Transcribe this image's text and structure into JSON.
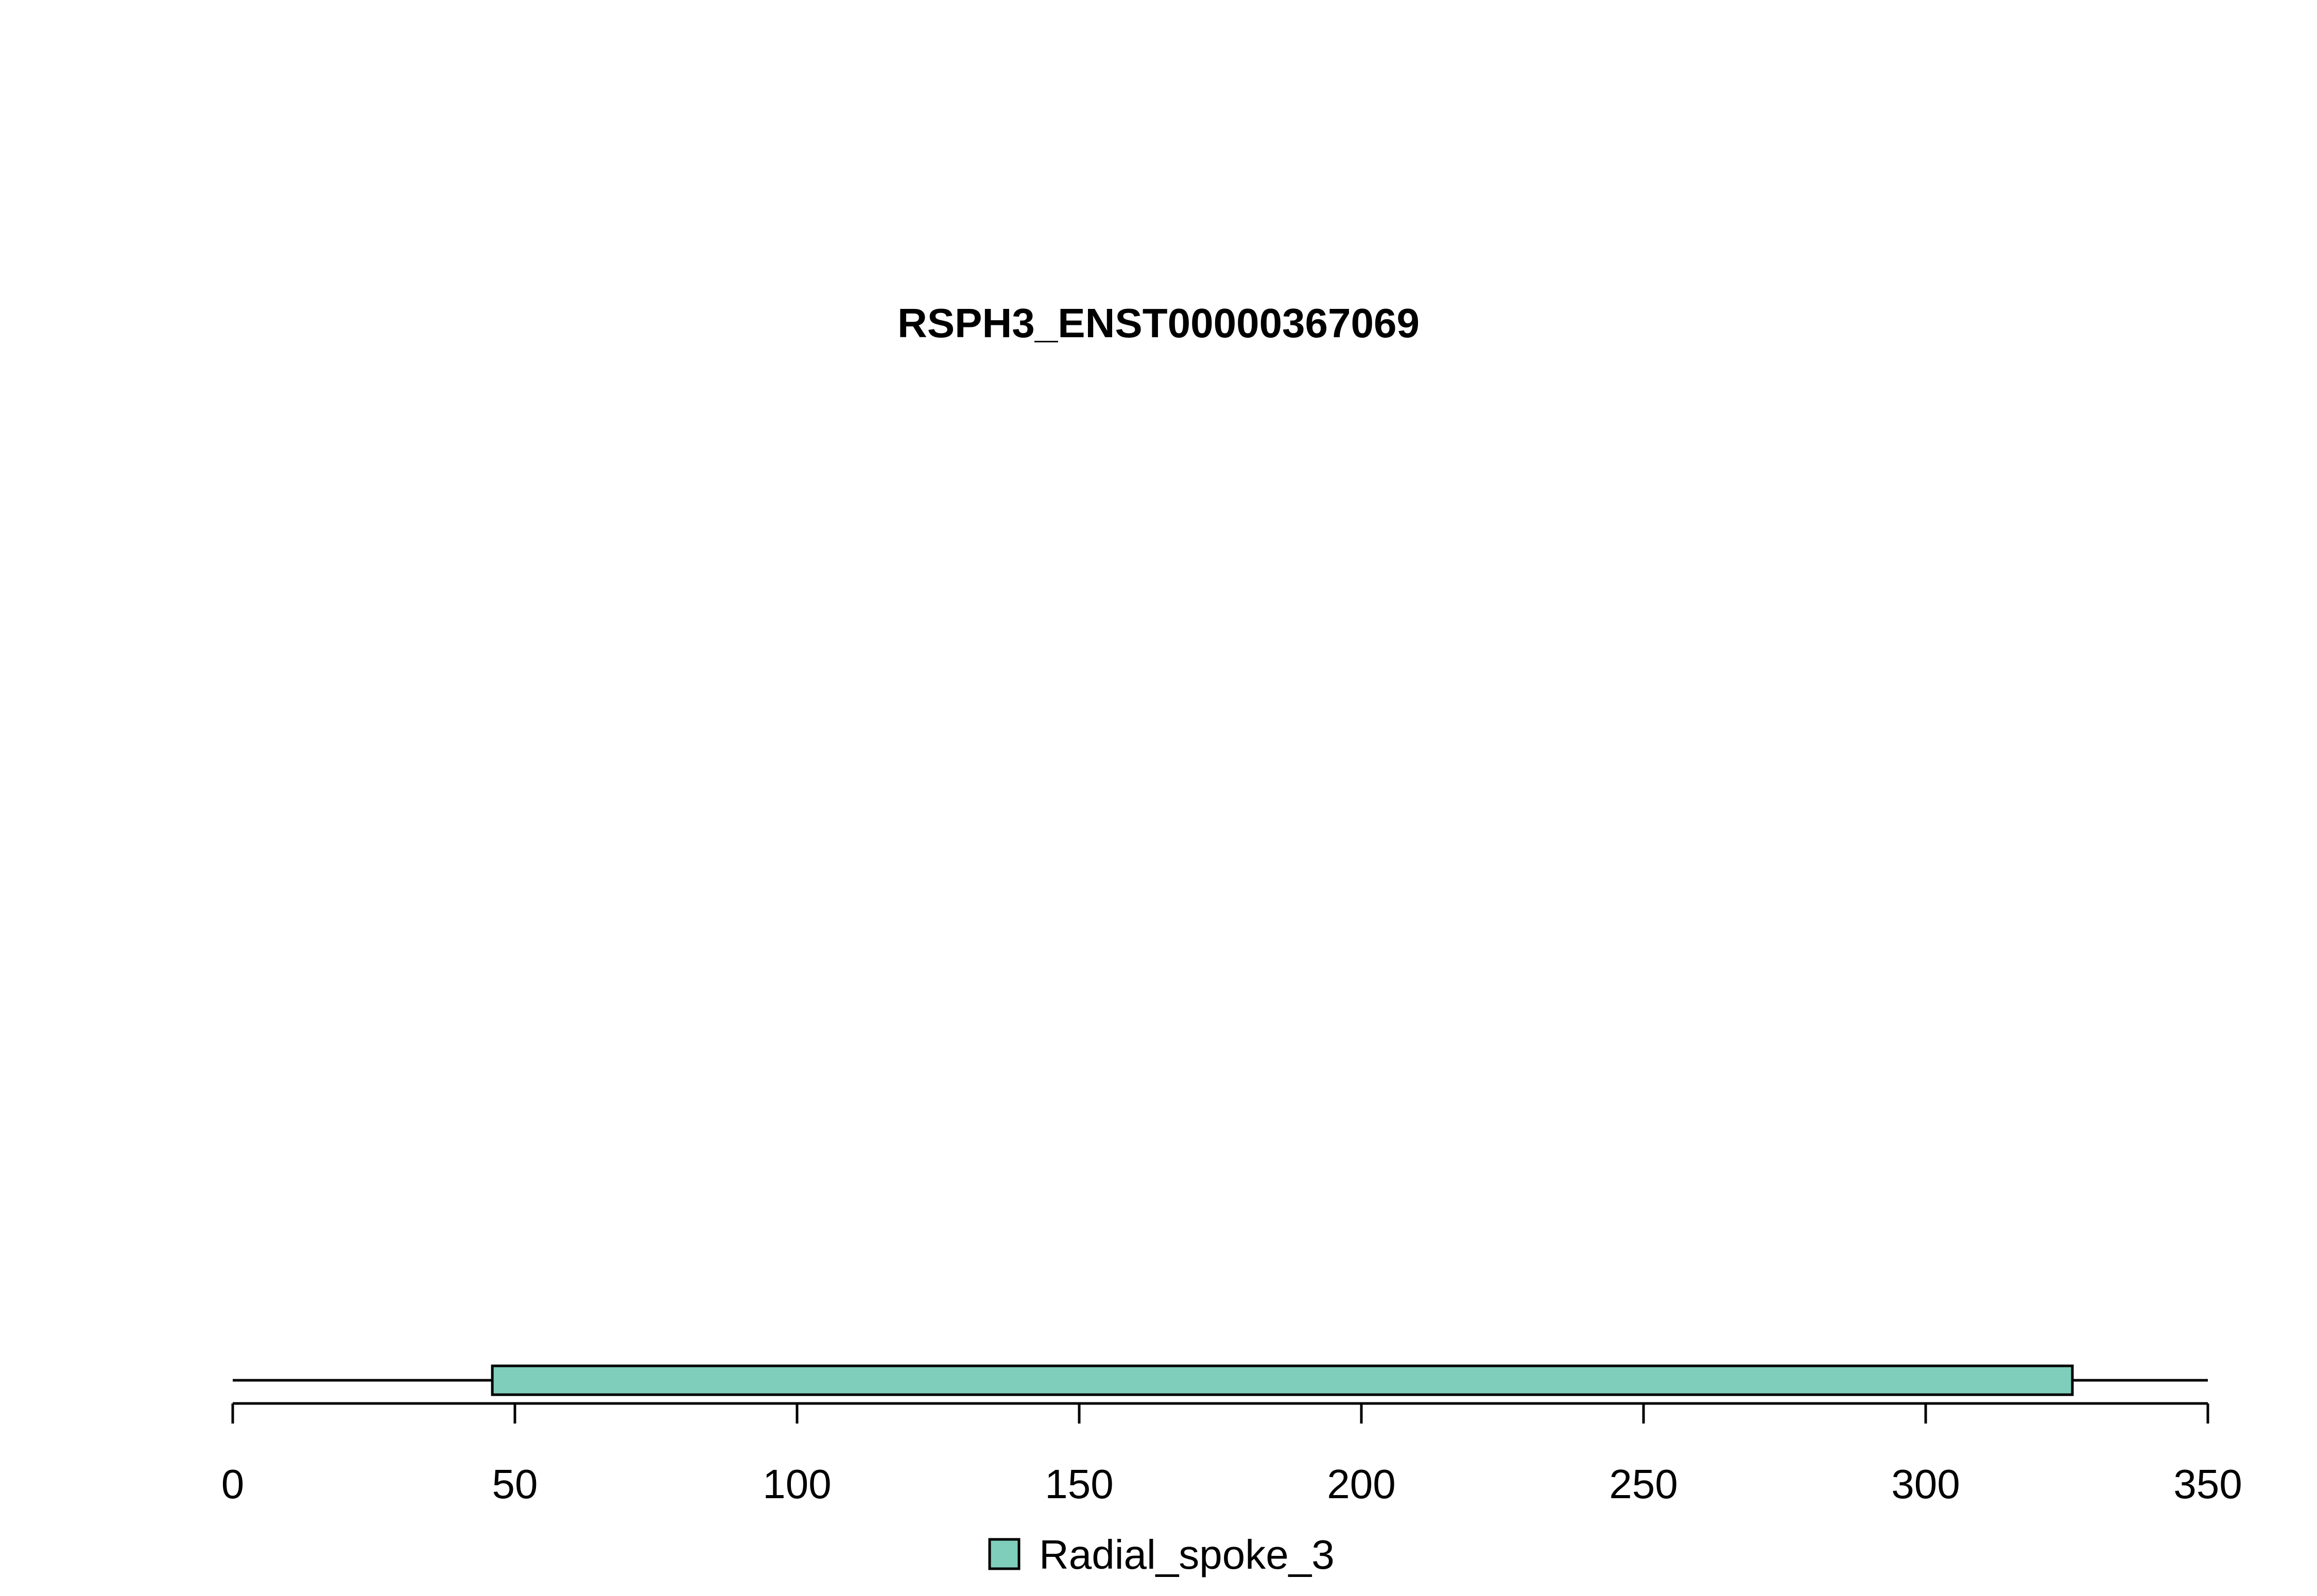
{
  "chart_data": {
    "type": "bar",
    "title": "RSPH3_ENST00000367069",
    "xlabel": "",
    "ylabel": "",
    "xlim": [
      0,
      350
    ],
    "x_ticks": [
      0,
      50,
      100,
      150,
      200,
      250,
      300,
      350
    ],
    "x_tick_labels": [
      "0",
      "50",
      "100",
      "150",
      "200",
      "250",
      "300",
      "350"
    ],
    "protein_length": 350,
    "domains": [
      {
        "name": "Radial_spoke_3",
        "start": 46,
        "end": 326,
        "color": "#7FCDBB"
      }
    ],
    "legend": {
      "placement": "bottom-center",
      "entries": [
        {
          "label": "Radial_spoke_3",
          "color": "#7FCDBB"
        }
      ]
    },
    "grid": false
  }
}
